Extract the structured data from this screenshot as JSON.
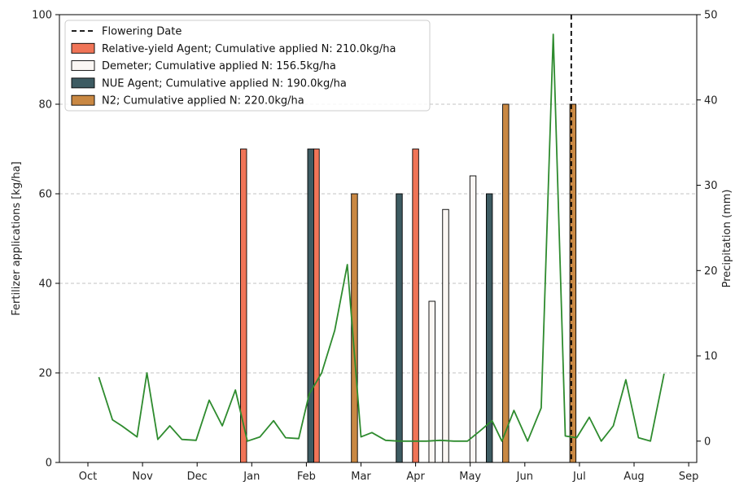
{
  "chart_data": {
    "type": "bar",
    "xlabel": "",
    "ylabel": "Fertilizer applications [kg/ha]",
    "ylabel_right": "Precipitation (mm)",
    "ylim": [
      0,
      100
    ],
    "ylim_right": [
      -2.5,
      50
    ],
    "yticks": [
      0,
      20,
      40,
      60,
      80,
      100
    ],
    "yticks_right": [
      0,
      10,
      20,
      30,
      40,
      50
    ],
    "month_ticks": [
      "Oct",
      "Nov",
      "Dec",
      "Jan",
      "Feb",
      "Mar",
      "Apr",
      "May",
      "Jun",
      "Jul",
      "Aug",
      "Sep"
    ],
    "grid": true,
    "legend_position": "top-left",
    "flowering_date": {
      "label": "Flowering Date",
      "month": 8.85
    },
    "series": [
      {
        "name": "Relative-yield Agent; Cumulative applied N: 210.0kg/ha",
        "color": "#f07457",
        "points": [
          {
            "month": 2.85,
            "value": 70
          },
          {
            "month": 4.18,
            "value": 70
          },
          {
            "month": 6.0,
            "value": 70
          }
        ]
      },
      {
        "name": "Demeter; Cumulative applied N: 156.5kg/ha",
        "color": "#fbf7f4",
        "points": [
          {
            "month": 6.3,
            "value": 36
          },
          {
            "month": 6.55,
            "value": 56.5
          },
          {
            "month": 7.05,
            "value": 64
          }
        ]
      },
      {
        "name": "NUE Agent; Cumulative applied N: 190.0kg/ha",
        "color": "#3d5b62",
        "points": [
          {
            "month": 4.08,
            "value": 70
          },
          {
            "month": 5.7,
            "value": 60
          },
          {
            "month": 7.35,
            "value": 60
          }
        ]
      },
      {
        "name": "N2; Cumulative applied N: 220.0kg/ha",
        "color": "#c98843",
        "points": [
          {
            "month": 4.88,
            "value": 60
          },
          {
            "month": 7.65,
            "value": 80
          },
          {
            "month": 8.88,
            "value": 80
          }
        ]
      }
    ],
    "precipitation": {
      "color": "#2e8b2e",
      "points": [
        {
          "month": 0.2,
          "value": 7.5
        },
        {
          "month": 0.45,
          "value": 2.5
        },
        {
          "month": 0.62,
          "value": 1.8
        },
        {
          "month": 0.9,
          "value": 0.5
        },
        {
          "month": 1.08,
          "value": 8.0
        },
        {
          "month": 1.28,
          "value": 0.2
        },
        {
          "month": 1.5,
          "value": 1.8
        },
        {
          "month": 1.72,
          "value": 0.2
        },
        {
          "month": 1.98,
          "value": 0.1
        },
        {
          "month": 2.22,
          "value": 4.8
        },
        {
          "month": 2.46,
          "value": 1.8
        },
        {
          "month": 2.7,
          "value": 6.0
        },
        {
          "month": 2.92,
          "value": 0.0
        },
        {
          "month": 3.15,
          "value": 0.5
        },
        {
          "month": 3.4,
          "value": 2.4
        },
        {
          "month": 3.62,
          "value": 0.4
        },
        {
          "month": 3.86,
          "value": 0.3
        },
        {
          "month": 4.05,
          "value": 5.5
        },
        {
          "month": 4.28,
          "value": 8.0
        },
        {
          "month": 4.52,
          "value": 13.0
        },
        {
          "month": 4.75,
          "value": 20.7
        },
        {
          "month": 5.0,
          "value": 0.5
        },
        {
          "month": 5.2,
          "value": 1.0
        },
        {
          "month": 5.45,
          "value": 0.1
        },
        {
          "month": 5.7,
          "value": 0.0
        },
        {
          "month": 5.95,
          "value": 0.0
        },
        {
          "month": 6.2,
          "value": 0.0
        },
        {
          "month": 6.45,
          "value": 0.1
        },
        {
          "month": 6.7,
          "value": 0.0
        },
        {
          "month": 6.95,
          "value": 0.0
        },
        {
          "month": 7.18,
          "value": 1.2
        },
        {
          "month": 7.4,
          "value": 2.4
        },
        {
          "month": 7.58,
          "value": 0.0
        },
        {
          "month": 7.8,
          "value": 3.6
        },
        {
          "month": 8.05,
          "value": 0.0
        },
        {
          "month": 8.3,
          "value": 3.9
        },
        {
          "month": 8.52,
          "value": 47.7
        },
        {
          "month": 8.74,
          "value": 0.6
        },
        {
          "month": 8.95,
          "value": 0.4
        },
        {
          "month": 9.18,
          "value": 2.8
        },
        {
          "month": 9.4,
          "value": 0.0
        },
        {
          "month": 9.62,
          "value": 1.8
        },
        {
          "month": 9.85,
          "value": 7.2
        },
        {
          "month": 10.08,
          "value": 0.4
        },
        {
          "month": 10.3,
          "value": 0.0
        },
        {
          "month": 10.55,
          "value": 7.9
        }
      ]
    }
  }
}
